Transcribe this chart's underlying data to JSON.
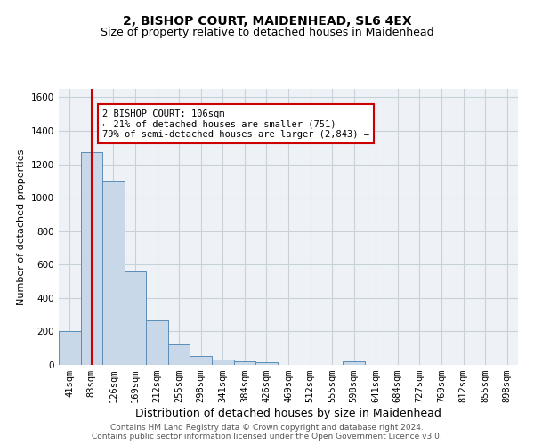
{
  "title": "2, BISHOP COURT, MAIDENHEAD, SL6 4EX",
  "subtitle": "Size of property relative to detached houses in Maidenhead",
  "xlabel": "Distribution of detached houses by size in Maidenhead",
  "ylabel": "Number of detached properties",
  "categories": [
    "41sqm",
    "83sqm",
    "126sqm",
    "169sqm",
    "212sqm",
    "255sqm",
    "298sqm",
    "341sqm",
    "384sqm",
    "426sqm",
    "469sqm",
    "512sqm",
    "555sqm",
    "598sqm",
    "641sqm",
    "684sqm",
    "727sqm",
    "769sqm",
    "812sqm",
    "855sqm",
    "898sqm"
  ],
  "values": [
    200,
    1270,
    1100,
    560,
    265,
    120,
    55,
    30,
    20,
    15,
    0,
    0,
    0,
    20,
    0,
    0,
    0,
    0,
    0,
    0,
    0
  ],
  "bar_color": "#c8d8e8",
  "bar_edge_color": "#5b8db8",
  "red_line_x": 1,
  "annotation_text": "2 BISHOP COURT: 106sqm\n← 21% of detached houses are smaller (751)\n79% of semi-detached houses are larger (2,843) →",
  "annotation_box_color": "white",
  "annotation_box_edge_color": "#cc0000",
  "red_line_color": "#cc0000",
  "ylim": [
    0,
    1650
  ],
  "yticks": [
    0,
    200,
    400,
    600,
    800,
    1000,
    1200,
    1400,
    1600
  ],
  "grid_color": "#c8d0d8",
  "background_color": "#eef2f6",
  "footer_line1": "Contains HM Land Registry data © Crown copyright and database right 2024.",
  "footer_line2": "Contains public sector information licensed under the Open Government Licence v3.0.",
  "title_fontsize": 10,
  "subtitle_fontsize": 9,
  "xlabel_fontsize": 9,
  "ylabel_fontsize": 8,
  "tick_fontsize": 7.5,
  "footer_fontsize": 6.5
}
